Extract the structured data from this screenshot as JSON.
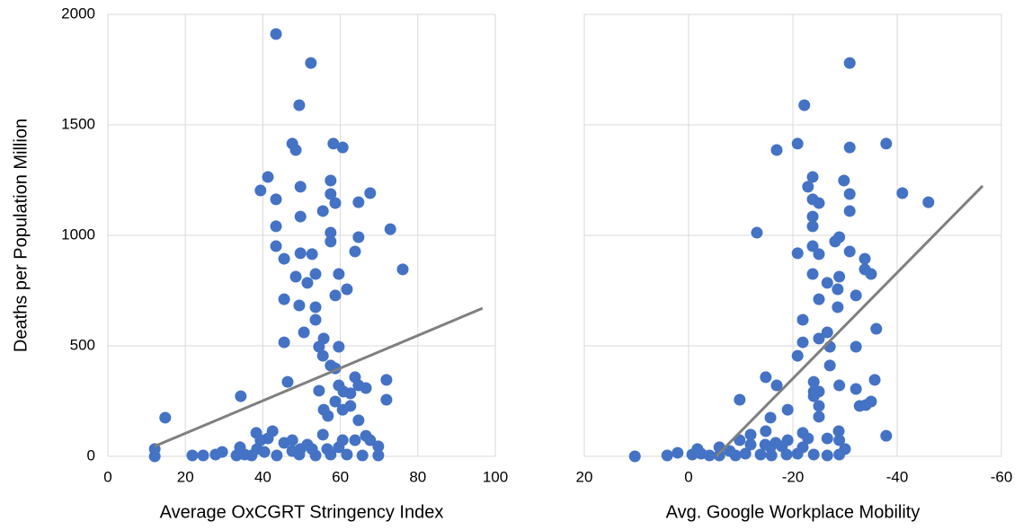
{
  "chart_data": [
    {
      "type": "scatter",
      "xlabel": "Average OxCGRT Stringency Index",
      "ylabel": "Deaths per Population Million",
      "xlim": [
        0,
        100
      ],
      "xticks": [
        0,
        20,
        40,
        60,
        80,
        100
      ],
      "ylim": [
        0,
        2000
      ],
      "yticks": [
        0,
        500,
        1000,
        1500,
        2000
      ],
      "grid": true,
      "color": "#4472c4",
      "x": [
        43.4,
        52.4,
        49.4,
        47.6,
        48.5,
        58.2,
        60.6,
        41.3,
        39.4,
        43.4,
        49.7,
        57.5,
        57.5,
        58.7,
        67.7,
        64.7,
        55.5,
        49.7,
        43.4,
        57.5,
        57.5,
        64.7,
        72.9,
        63.8,
        43.4,
        45.5,
        49.7,
        52.7,
        48.5,
        53.6,
        59.6,
        51.5,
        76.1,
        61.7,
        58.7,
        45.5,
        49.4,
        53.6,
        53.6,
        55.7,
        50.6,
        45.5,
        59.6,
        54.5,
        55.5,
        58.7,
        57.5,
        46.4,
        63.8,
        71.9,
        59.6,
        66.6,
        64.7,
        60.8,
        62.6,
        34.3,
        54.5,
        71.9,
        58.7,
        62.6,
        60.6,
        55.7,
        56.8,
        64.7,
        14.8,
        66.6,
        63.8,
        42.5,
        38.3,
        41.3,
        39.4,
        47.6,
        45.5,
        51.5,
        55.5,
        60.6,
        67.7,
        69.8,
        34.1,
        52.7,
        56.6,
        12.1,
        12.1,
        21.8,
        24.6,
        27.8,
        29.5,
        33.2,
        35.3,
        37.1,
        40.4,
        43.6,
        47.6,
        49.4,
        53.6,
        57.5,
        61.7,
        65.7,
        69.8,
        59.6,
        49.7,
        38.5
      ],
      "y": [
        1911,
        1780,
        1589,
        1415,
        1386,
        1415,
        1398,
        1264,
        1203,
        1163,
        1220,
        1248,
        1187,
        1146,
        1191,
        1150,
        1110,
        1085,
        1041,
        1012,
        972,
        992,
        1028,
        927,
        951,
        894,
        919,
        915,
        813,
        825,
        825,
        785,
        846,
        756,
        728,
        711,
        683,
        675,
        618,
        533,
        561,
        516,
        496,
        496,
        455,
        398,
        411,
        337,
        358,
        346,
        321,
        309,
        321,
        293,
        285,
        272,
        297,
        256,
        248,
        228,
        211,
        211,
        183,
        163,
        175,
        93,
        73,
        114,
        106,
        81,
        73,
        73,
        61,
        53,
        98,
        73,
        73,
        45,
        41,
        33,
        33,
        33,
        0,
        4,
        4,
        8,
        20,
        4,
        8,
        4,
        20,
        4,
        24,
        8,
        4,
        8,
        8,
        4,
        4,
        41,
        33,
        33
      ],
      "trendline": {
        "color": "#7f7f7f",
        "x": [
          12,
          96.7
        ],
        "y": [
          45,
          670
        ]
      }
    },
    {
      "type": "scatter",
      "xlabel": "Avg. Google Workplace Mobility",
      "xlim": [
        20,
        -60
      ],
      "xticks": [
        20,
        0,
        -20,
        -40,
        -60
      ],
      "ylim": [
        0,
        2000
      ],
      "yticks": [
        0,
        500,
        1000,
        1500,
        2000
      ],
      "grid": true,
      "color": "#4472c4",
      "x": [
        -30.9,
        -22.2,
        -16.9,
        -20.9,
        -30.9,
        -37.9,
        -23.8,
        -22.9,
        -29.8,
        -30.9,
        -41.0,
        -46.0,
        -23.8,
        -25.0,
        -30.9,
        -23.8,
        -23.8,
        -13.1,
        -28.9,
        -28.1,
        -30.9,
        -20.9,
        -25.0,
        -23.8,
        -33.8,
        -33.8,
        -35.0,
        -23.8,
        -28.9,
        -26.6,
        -28.6,
        -32.1,
        -25.0,
        -28.6,
        -21.9,
        -26.6,
        -25.0,
        -21.9,
        -27.1,
        -32.1,
        -20.9,
        -36.0,
        -27.1,
        -14.8,
        -35.7,
        -24.0,
        -16.9,
        -28.9,
        -32.1,
        -24.0,
        -25.0,
        -24.0,
        -9.8,
        -35.0,
        -34.0,
        -32.8,
        -25.0,
        -19.0,
        -25.0,
        -15.7,
        -37.9,
        -28.8,
        -21.9,
        -14.8,
        -11.9,
        -26.6,
        -22.9,
        -28.9,
        -19.0,
        -16.7,
        -9.8,
        -11.9,
        -14.7,
        -15.7,
        -17.9,
        -30.0,
        -21.9,
        -5.9,
        -1.7,
        2.1,
        10.3,
        4.1,
        -0.7,
        -4.0,
        -7.9,
        -9.0,
        -10.9,
        -13.8,
        -15.9,
        -18.8,
        -20.9,
        -24.0,
        -26.6,
        -28.9,
        -5.9,
        -2.4
      ],
      "y": [
        1780,
        1589,
        1386,
        1415,
        1398,
        1415,
        1264,
        1220,
        1248,
        1187,
        1191,
        1150,
        1163,
        1146,
        1110,
        1085,
        1041,
        1012,
        992,
        972,
        927,
        919,
        915,
        951,
        894,
        846,
        825,
        825,
        813,
        785,
        756,
        728,
        711,
        675,
        618,
        561,
        533,
        516,
        496,
        496,
        455,
        577,
        411,
        358,
        346,
        337,
        321,
        321,
        305,
        293,
        293,
        272,
        256,
        248,
        232,
        228,
        228,
        211,
        179,
        175,
        93,
        114,
        106,
        114,
        98,
        81,
        81,
        73,
        73,
        61,
        73,
        53,
        53,
        41,
        45,
        33,
        41,
        41,
        33,
        16,
        0,
        4,
        8,
        4,
        24,
        4,
        12,
        8,
        4,
        8,
        12,
        8,
        4,
        8,
        4,
        12
      ],
      "trendline": {
        "color": "#7f7f7f",
        "x": [
          -5.3,
          -56.4
        ],
        "y": [
          0,
          1224
        ]
      }
    }
  ]
}
